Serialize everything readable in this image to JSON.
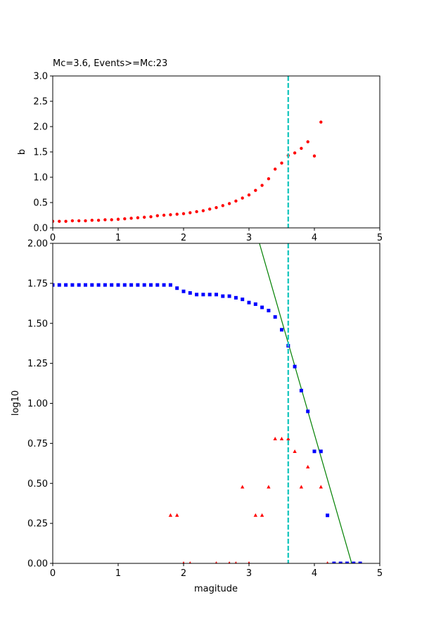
{
  "chart_data": [
    {
      "type": "scatter",
      "title": "Mc=3.6, Events>=Mc:23",
      "xlabel": "",
      "ylabel": "b",
      "xlim": [
        0,
        5
      ],
      "ylim": [
        0,
        3
      ],
      "xticks": [
        "0",
        "1",
        "2",
        "3",
        "4",
        "5"
      ],
      "yticks": [
        "0.0",
        "0.5",
        "1.0",
        "1.5",
        "2.0",
        "2.5",
        "3.0"
      ],
      "grid": false,
      "series": [
        {
          "marker": "circle",
          "color": "#ff0000",
          "x": [
            0.0,
            0.1,
            0.2,
            0.3,
            0.4,
            0.5,
            0.6,
            0.7,
            0.8,
            0.9,
            1.0,
            1.1,
            1.2,
            1.3,
            1.4,
            1.5,
            1.6,
            1.7,
            1.8,
            1.9,
            2.0,
            2.1,
            2.2,
            2.3,
            2.4,
            2.5,
            2.6,
            2.7,
            2.8,
            2.9,
            3.0,
            3.1,
            3.2,
            3.3,
            3.4,
            3.5,
            3.6,
            3.7,
            3.8,
            3.9,
            4.0,
            4.1
          ],
          "y": [
            0.13,
            0.13,
            0.13,
            0.14,
            0.14,
            0.14,
            0.15,
            0.15,
            0.16,
            0.16,
            0.17,
            0.18,
            0.19,
            0.2,
            0.21,
            0.22,
            0.24,
            0.25,
            0.26,
            0.27,
            0.28,
            0.3,
            0.32,
            0.34,
            0.37,
            0.4,
            0.44,
            0.48,
            0.53,
            0.59,
            0.65,
            0.74,
            0.84,
            0.97,
            1.16,
            1.28,
            1.43,
            1.48,
            1.57,
            1.7,
            1.42,
            2.09
          ]
        }
      ],
      "vline": {
        "x": 3.6,
        "color": "#1fc8c0",
        "style": "dashed"
      }
    },
    {
      "type": "scatter",
      "title": "",
      "xlabel": "magitude",
      "ylabel": "log10",
      "xlim": [
        0,
        5
      ],
      "ylim": [
        0,
        2
      ],
      "xticks": [
        "0",
        "1",
        "2",
        "3",
        "4",
        "5"
      ],
      "yticks": [
        "0.00",
        "0.25",
        "0.50",
        "0.75",
        "1.00",
        "1.25",
        "1.50",
        "1.75",
        "2.00"
      ],
      "grid": false,
      "series": [
        {
          "marker": "square",
          "color": "#0000ff",
          "x": [
            0.0,
            0.1,
            0.2,
            0.3,
            0.4,
            0.5,
            0.6,
            0.7,
            0.8,
            0.9,
            1.0,
            1.1,
            1.2,
            1.3,
            1.4,
            1.5,
            1.6,
            1.7,
            1.8,
            1.9,
            2.0,
            2.1,
            2.2,
            2.3,
            2.4,
            2.5,
            2.6,
            2.7,
            2.8,
            2.9,
            3.0,
            3.1,
            3.2,
            3.3,
            3.4,
            3.5,
            3.6,
            3.7,
            3.8,
            3.9,
            4.0,
            4.1,
            4.2,
            4.3,
            4.4,
            4.5,
            4.6,
            4.7
          ],
          "y": [
            1.74,
            1.74,
            1.74,
            1.74,
            1.74,
            1.74,
            1.74,
            1.74,
            1.74,
            1.74,
            1.74,
            1.74,
            1.74,
            1.74,
            1.74,
            1.74,
            1.74,
            1.74,
            1.74,
            1.72,
            1.7,
            1.69,
            1.68,
            1.68,
            1.68,
            1.68,
            1.67,
            1.67,
            1.66,
            1.65,
            1.63,
            1.62,
            1.6,
            1.58,
            1.54,
            1.46,
            1.36,
            1.23,
            1.08,
            0.95,
            0.7,
            0.7,
            0.3,
            0.0,
            0.0,
            0.0,
            0.0,
            0.0
          ]
        },
        {
          "marker": "triangle",
          "color": "#ff0000",
          "x": [
            1.8,
            1.9,
            2.0,
            2.1,
            2.5,
            2.7,
            2.8,
            2.9,
            3.0,
            3.1,
            3.2,
            3.3,
            3.4,
            3.5,
            3.6,
            3.7,
            3.8,
            3.9,
            4.1,
            4.2
          ],
          "y": [
            0.3,
            0.3,
            0.0,
            0.0,
            0.0,
            0.0,
            0.0,
            0.477,
            0.0,
            0.3,
            0.3,
            0.477,
            0.778,
            0.778,
            0.778,
            0.699,
            0.477,
            0.602,
            0.477,
            0.0
          ]
        }
      ],
      "fit_line": {
        "color": "#008000",
        "x": [
          3.16,
          4.57
        ],
        "y": [
          2.0,
          0.0
        ]
      },
      "vline": {
        "x": 3.6,
        "color": "#1fc8c0",
        "style": "dashed"
      }
    }
  ]
}
